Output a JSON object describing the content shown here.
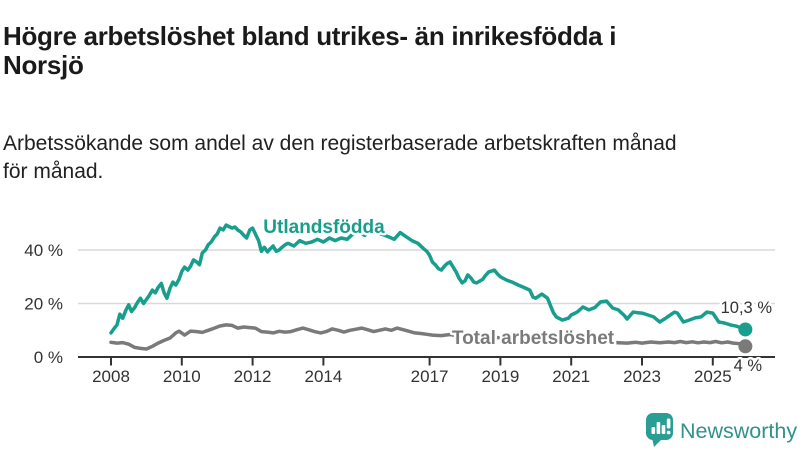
{
  "header": {
    "title": "Högre arbetslöshet bland utrikes- än inrikesfödda i Norsjö",
    "title_lines": [
      "Högre arbetslöshet bland utrikes- än inrikesfödda i",
      "Norsjö"
    ],
    "subtitle": "Arbetssökande som andel av den registerbaserade arbetskraften månad för månad.",
    "subtitle_lines": [
      "Arbetssökande som andel av den registerbaserade arbetskraften månad",
      "för månad."
    ]
  },
  "branding": {
    "name": "Newsworthy",
    "logo_color": "#2a9d94",
    "text_color": "#31928c",
    "logo_icon": "bar-chart-speech-bubble"
  },
  "chart_data": {
    "type": "line",
    "title": "Högre arbetslöshet bland utrikes- än inrikesfödda i Norsjö",
    "subtitle": "Arbetssökande som andel av den registerbaserade arbetskraften månad för månad.",
    "xlabel": "",
    "ylabel": "",
    "x_unit": "year",
    "xlim": [
      2007.25,
      2026.4
    ],
    "ylim": [
      0,
      52
    ],
    "grid": "horizontal",
    "legend_position": "inline-labels",
    "x_ticks": [
      2008,
      2010,
      2012,
      2014,
      2017,
      2019,
      2021,
      2023,
      2025
    ],
    "y_ticks": [
      {
        "value": 0,
        "label": "0 %"
      },
      {
        "value": 20,
        "label": "20 %"
      },
      {
        "value": 40,
        "label": "40 %"
      }
    ],
    "series": [
      {
        "name": "Utlandsfödda",
        "color": "#189e8d",
        "end_label": "10,3 %",
        "end_value": 10.3,
        "points": [
          [
            2008.0,
            9
          ],
          [
            2008.08,
            10.5
          ],
          [
            2008.17,
            12
          ],
          [
            2008.25,
            16
          ],
          [
            2008.33,
            14.5
          ],
          [
            2008.42,
            17.5
          ],
          [
            2008.5,
            19.5
          ],
          [
            2008.58,
            17
          ],
          [
            2008.67,
            18.5
          ],
          [
            2008.75,
            20.5
          ],
          [
            2008.83,
            22
          ],
          [
            2008.92,
            20
          ],
          [
            2009.0,
            21.5
          ],
          [
            2009.08,
            23
          ],
          [
            2009.17,
            25
          ],
          [
            2009.25,
            24
          ],
          [
            2009.33,
            26
          ],
          [
            2009.42,
            27.5
          ],
          [
            2009.5,
            24
          ],
          [
            2009.58,
            22
          ],
          [
            2009.67,
            25.8
          ],
          [
            2009.75,
            28
          ],
          [
            2009.83,
            26.9
          ],
          [
            2009.92,
            29
          ],
          [
            2010.0,
            32
          ],
          [
            2010.08,
            33.6
          ],
          [
            2010.17,
            32.5
          ],
          [
            2010.25,
            34
          ],
          [
            2010.33,
            36.3
          ],
          [
            2010.42,
            35.5
          ],
          [
            2010.5,
            34.5
          ],
          [
            2010.58,
            38.9
          ],
          [
            2010.67,
            40
          ],
          [
            2010.75,
            42
          ],
          [
            2010.83,
            43
          ],
          [
            2010.92,
            44.9
          ],
          [
            2011.0,
            46
          ],
          [
            2011.08,
            48.2
          ],
          [
            2011.17,
            47.5
          ],
          [
            2011.25,
            49.3
          ],
          [
            2011.33,
            48.8
          ],
          [
            2011.42,
            48.2
          ],
          [
            2011.5,
            48.6
          ],
          [
            2011.58,
            47.5
          ],
          [
            2011.67,
            46.7
          ],
          [
            2011.75,
            45.5
          ],
          [
            2011.83,
            44.5
          ],
          [
            2011.92,
            47.5
          ],
          [
            2012.0,
            48.2
          ],
          [
            2012.08,
            46
          ],
          [
            2012.17,
            43.5
          ],
          [
            2012.25,
            39.5
          ],
          [
            2012.33,
            41
          ],
          [
            2012.42,
            39.3
          ],
          [
            2012.5,
            40.5
          ],
          [
            2012.58,
            41.5
          ],
          [
            2012.67,
            39.5
          ],
          [
            2012.75,
            40
          ],
          [
            2012.83,
            41
          ],
          [
            2012.92,
            42
          ],
          [
            2013.0,
            42.5
          ],
          [
            2013.17,
            41.5
          ],
          [
            2013.33,
            43.5
          ],
          [
            2013.5,
            42.5
          ],
          [
            2013.67,
            43
          ],
          [
            2013.83,
            44
          ],
          [
            2014.0,
            43
          ],
          [
            2014.17,
            44.5
          ],
          [
            2014.33,
            43.5
          ],
          [
            2014.5,
            44.5
          ],
          [
            2014.67,
            44
          ],
          [
            2014.83,
            46
          ],
          [
            2015.0,
            46.4
          ],
          [
            2015.17,
            45.5
          ],
          [
            2015.33,
            47.5
          ],
          [
            2015.5,
            46.5
          ],
          [
            2015.67,
            45.8
          ],
          [
            2015.83,
            45
          ],
          [
            2016.0,
            44
          ],
          [
            2016.17,
            46.5
          ],
          [
            2016.33,
            45
          ],
          [
            2016.5,
            43.5
          ],
          [
            2016.67,
            42.5
          ],
          [
            2016.83,
            40.5
          ],
          [
            2016.92,
            39.5
          ],
          [
            2017.0,
            38
          ],
          [
            2017.08,
            35.5
          ],
          [
            2017.17,
            34.4
          ],
          [
            2017.25,
            33
          ],
          [
            2017.33,
            32.5
          ],
          [
            2017.42,
            34
          ],
          [
            2017.5,
            35
          ],
          [
            2017.58,
            35.5
          ],
          [
            2017.67,
            33.5
          ],
          [
            2017.75,
            31.8
          ],
          [
            2017.83,
            29.5
          ],
          [
            2017.92,
            27.7
          ],
          [
            2018.0,
            28.5
          ],
          [
            2018.08,
            30.7
          ],
          [
            2018.17,
            29.5
          ],
          [
            2018.25,
            28
          ],
          [
            2018.33,
            27.7
          ],
          [
            2018.5,
            29
          ],
          [
            2018.58,
            30.5
          ],
          [
            2018.67,
            31.8
          ],
          [
            2018.83,
            32.5
          ],
          [
            2018.92,
            31
          ],
          [
            2019.0,
            30
          ],
          [
            2019.17,
            28.8
          ],
          [
            2019.33,
            28
          ],
          [
            2019.5,
            26.9
          ],
          [
            2019.67,
            26
          ],
          [
            2019.83,
            25
          ],
          [
            2019.92,
            22.4
          ],
          [
            2020.0,
            22
          ],
          [
            2020.17,
            23.5
          ],
          [
            2020.33,
            22
          ],
          [
            2020.42,
            19
          ],
          [
            2020.5,
            16.5
          ],
          [
            2020.58,
            15
          ],
          [
            2020.75,
            13.8
          ],
          [
            2020.92,
            14.5
          ],
          [
            2021.0,
            15.7
          ],
          [
            2021.17,
            16.8
          ],
          [
            2021.33,
            18.7
          ],
          [
            2021.5,
            17.6
          ],
          [
            2021.67,
            18.5
          ],
          [
            2021.83,
            20.6
          ],
          [
            2022.0,
            20.9
          ],
          [
            2022.17,
            18.3
          ],
          [
            2022.33,
            17.6
          ],
          [
            2022.5,
            15.5
          ],
          [
            2022.58,
            14.2
          ],
          [
            2022.75,
            16.8
          ],
          [
            2022.92,
            16.5
          ],
          [
            2023.0,
            16.4
          ],
          [
            2023.17,
            15.7
          ],
          [
            2023.33,
            15
          ],
          [
            2023.5,
            13.1
          ],
          [
            2023.67,
            14.5
          ],
          [
            2023.83,
            16
          ],
          [
            2023.92,
            16.8
          ],
          [
            2024.0,
            16.4
          ],
          [
            2024.17,
            13.1
          ],
          [
            2024.33,
            13.8
          ],
          [
            2024.5,
            14.6
          ],
          [
            2024.67,
            15
          ],
          [
            2024.83,
            16.8
          ],
          [
            2025.0,
            16.4
          ],
          [
            2025.17,
            13.1
          ],
          [
            2025.33,
            12.7
          ],
          [
            2025.5,
            12
          ],
          [
            2025.67,
            11.5
          ],
          [
            2025.83,
            10.8
          ],
          [
            2025.92,
            10.3
          ]
        ]
      },
      {
        "name": "Total arbetslöshet",
        "color": "#7a7a7a",
        "end_label": "4 %",
        "end_value": 4,
        "points": [
          [
            2008.0,
            5.5
          ],
          [
            2008.17,
            5.2
          ],
          [
            2008.33,
            5.4
          ],
          [
            2008.5,
            4.8
          ],
          [
            2008.67,
            3.6
          ],
          [
            2008.83,
            3.2
          ],
          [
            2009.0,
            3.0
          ],
          [
            2009.17,
            4.0
          ],
          [
            2009.33,
            5.2
          ],
          [
            2009.5,
            6.2
          ],
          [
            2009.67,
            7.1
          ],
          [
            2009.83,
            9.0
          ],
          [
            2009.92,
            9.7
          ],
          [
            2010.08,
            8.2
          ],
          [
            2010.25,
            9.7
          ],
          [
            2010.42,
            9.5
          ],
          [
            2010.58,
            9.2
          ],
          [
            2010.75,
            10.0
          ],
          [
            2010.92,
            10.8
          ],
          [
            2011.08,
            11.6
          ],
          [
            2011.25,
            12.0
          ],
          [
            2011.42,
            11.8
          ],
          [
            2011.58,
            10.8
          ],
          [
            2011.75,
            11.2
          ],
          [
            2011.92,
            11.0
          ],
          [
            2012.08,
            10.8
          ],
          [
            2012.25,
            9.5
          ],
          [
            2012.42,
            9.3
          ],
          [
            2012.58,
            9.0
          ],
          [
            2012.75,
            9.6
          ],
          [
            2012.92,
            9.3
          ],
          [
            2013.08,
            9.5
          ],
          [
            2013.25,
            10.2
          ],
          [
            2013.42,
            10.8
          ],
          [
            2013.58,
            10.2
          ],
          [
            2013.75,
            9.5
          ],
          [
            2013.92,
            9.0
          ],
          [
            2014.08,
            9.5
          ],
          [
            2014.25,
            10.5
          ],
          [
            2014.42,
            10.0
          ],
          [
            2014.58,
            9.3
          ],
          [
            2014.75,
            10.0
          ],
          [
            2014.92,
            10.4
          ],
          [
            2015.08,
            10.8
          ],
          [
            2015.25,
            10.2
          ],
          [
            2015.42,
            9.5
          ],
          [
            2015.58,
            10.0
          ],
          [
            2015.75,
            10.5
          ],
          [
            2015.92,
            10.0
          ],
          [
            2016.08,
            10.8
          ],
          [
            2016.25,
            10.2
          ],
          [
            2016.42,
            9.6
          ],
          [
            2016.58,
            9.0
          ],
          [
            2016.75,
            8.8
          ],
          [
            2016.92,
            8.5
          ],
          [
            2017.08,
            8.2
          ],
          [
            2017.33,
            8.0
          ],
          [
            2017.58,
            8.4
          ],
          [
            2017.83,
            7.8
          ],
          [
            2018.08,
            7.4
          ],
          [
            2018.33,
            7.2
          ],
          [
            2018.58,
            7.8
          ],
          [
            2018.83,
            7.4
          ],
          [
            2019.08,
            7.0
          ],
          [
            2019.33,
            7.2
          ],
          [
            2019.58,
            6.8
          ],
          [
            2019.83,
            7.0
          ],
          [
            2020.08,
            7.6
          ],
          [
            2020.33,
            8.2
          ],
          [
            2020.58,
            8.0
          ],
          [
            2020.83,
            7.6
          ],
          [
            2021.08,
            7.2
          ],
          [
            2021.33,
            6.8
          ],
          [
            2021.58,
            6.2
          ],
          [
            2021.83,
            5.8
          ],
          [
            2022.08,
            5.5
          ],
          [
            2022.33,
            5.3
          ],
          [
            2022.58,
            5.2
          ],
          [
            2022.83,
            5.5
          ],
          [
            2023.0,
            5.2
          ],
          [
            2023.25,
            5.6
          ],
          [
            2023.5,
            5.3
          ],
          [
            2023.75,
            5.6
          ],
          [
            2023.92,
            5.4
          ],
          [
            2024.08,
            5.8
          ],
          [
            2024.25,
            5.4
          ],
          [
            2024.42,
            5.7
          ],
          [
            2024.58,
            5.3
          ],
          [
            2024.75,
            5.6
          ],
          [
            2024.92,
            5.4
          ],
          [
            2025.08,
            5.8
          ],
          [
            2025.25,
            5.3
          ],
          [
            2025.42,
            5.6
          ],
          [
            2025.58,
            5.2
          ],
          [
            2025.75,
            5.0
          ],
          [
            2025.92,
            4.0
          ]
        ]
      }
    ],
    "colors": {
      "axis": "#333333",
      "gridline": "#d9d9d9",
      "tick_text": "#333333",
      "end_label_text": "#333333"
    }
  }
}
